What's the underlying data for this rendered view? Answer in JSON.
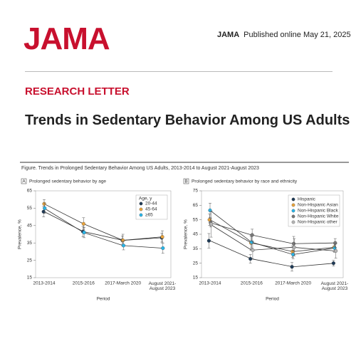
{
  "header": {
    "logo": "JAMA",
    "journal": "JAMA",
    "published": "Published online May 21, 2025"
  },
  "article": {
    "section": "RESEARCH LETTER",
    "title": "Trends in Sedentary Behavior Among US Adults"
  },
  "figure": {
    "caption": "Figure. Trends in Prolonged Sedentary Behavior Among US Adults, 2013-2014 to August 2021-August 2023"
  },
  "chart_data": [
    {
      "type": "line",
      "panel": "A",
      "title": "Prolonged sedentary behavior by age",
      "x_label": "Period",
      "y_label": "Prevalence, %",
      "legend_title": "Age, y",
      "legend": "upper right",
      "categories": [
        "2013-2014",
        "2015-2016",
        "2017-March 2020",
        "August 2021-August 2023"
      ],
      "ylim": [
        15,
        65
      ],
      "yticks": [
        15,
        25,
        35,
        45,
        55,
        65
      ],
      "series": [
        {
          "name": "20-44",
          "color": "#1f3b57",
          "values": [
            53,
            41.5,
            36.5,
            38
          ],
          "errors": [
            3,
            3,
            2.5,
            2.5
          ]
        },
        {
          "name": "45-64",
          "color": "#e8a33c",
          "values": [
            57.5,
            46,
            36.5,
            38.5
          ],
          "errors": [
            2.5,
            3.5,
            3.5,
            3.5
          ]
        },
        {
          "name": "≥65",
          "color": "#29b5e8",
          "values": [
            55,
            41,
            33.5,
            32
          ],
          "errors": [
            3,
            3,
            2.5,
            3
          ]
        }
      ]
    },
    {
      "type": "line",
      "panel": "B",
      "title": "Prolonged sedentary behavior by race and ethnicity",
      "x_label": "Period",
      "y_label": "Prevalence, %",
      "legend": "upper right",
      "categories": [
        "2013-2014",
        "2015-2016",
        "2017-March 2020",
        "August 2021-August 2023"
      ],
      "ylim": [
        15,
        75
      ],
      "yticks": [
        15,
        25,
        35,
        45,
        55,
        65,
        75
      ],
      "series": [
        {
          "name": "Hispanic",
          "color": "#1f3b57",
          "values": [
            40.5,
            28,
            22.5,
            25
          ],
          "errors": [
            5,
            3,
            3,
            2
          ]
        },
        {
          "name": "Non-Hispanic Asian",
          "color": "#e8a33c",
          "values": [
            55,
            39,
            33,
            36
          ],
          "errors": [
            4,
            5,
            4,
            3
          ]
        },
        {
          "name": "Non-Hispanic Black",
          "color": "#29b5e8",
          "values": [
            61.5,
            39.5,
            31,
            35.5
          ],
          "errors": [
            5,
            4,
            3,
            3
          ]
        },
        {
          "name": "Non-Hispanic White",
          "color": "#777777",
          "values": [
            53,
            44.5,
            38.5,
            39
          ],
          "errors": [
            3,
            4,
            5,
            3
          ]
        },
        {
          "name": "Non-Hispanic other",
          "color": "#b5b5b5",
          "values": [
            52,
            34,
            36,
            33.5
          ],
          "errors": [
            9,
            6,
            6,
            5
          ]
        }
      ]
    }
  ]
}
